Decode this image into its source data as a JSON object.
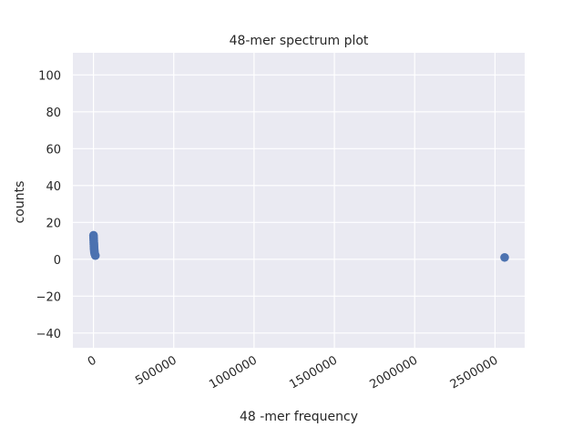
{
  "chart_data": {
    "type": "scatter",
    "title": "48-mer spectrum plot",
    "xlabel": "48 -mer frequency",
    "ylabel": "counts",
    "xlim": [
      -128000,
      2685000
    ],
    "ylim": [
      -48,
      112
    ],
    "xticks": [
      0,
      500000,
      1000000,
      1500000,
      2000000,
      2500000
    ],
    "xtick_labels": [
      "0",
      "500000",
      "1000000",
      "1500000",
      "2000000",
      "2500000"
    ],
    "yticks": [
      -40,
      -20,
      0,
      20,
      40,
      60,
      80,
      100
    ],
    "ytick_labels": [
      "−40",
      "−20",
      "0",
      "20",
      "40",
      "60",
      "80",
      "100"
    ],
    "grid": true,
    "colors": {
      "background": "#eaeaf2",
      "grid": "#ffffff",
      "points": "#4c72b0"
    },
    "points": [
      {
        "x": 500,
        "y": 13
      },
      {
        "x": 1000,
        "y": 12
      },
      {
        "x": 1500,
        "y": 11
      },
      {
        "x": 2000,
        "y": 10
      },
      {
        "x": 2500,
        "y": 9
      },
      {
        "x": 3000,
        "y": 8
      },
      {
        "x": 3500,
        "y": 7
      },
      {
        "x": 4000,
        "y": 6
      },
      {
        "x": 5000,
        "y": 5
      },
      {
        "x": 6000,
        "y": 4
      },
      {
        "x": 8000,
        "y": 3
      },
      {
        "x": 12000,
        "y": 2
      },
      {
        "x": 2560000,
        "y": 1
      }
    ]
  }
}
